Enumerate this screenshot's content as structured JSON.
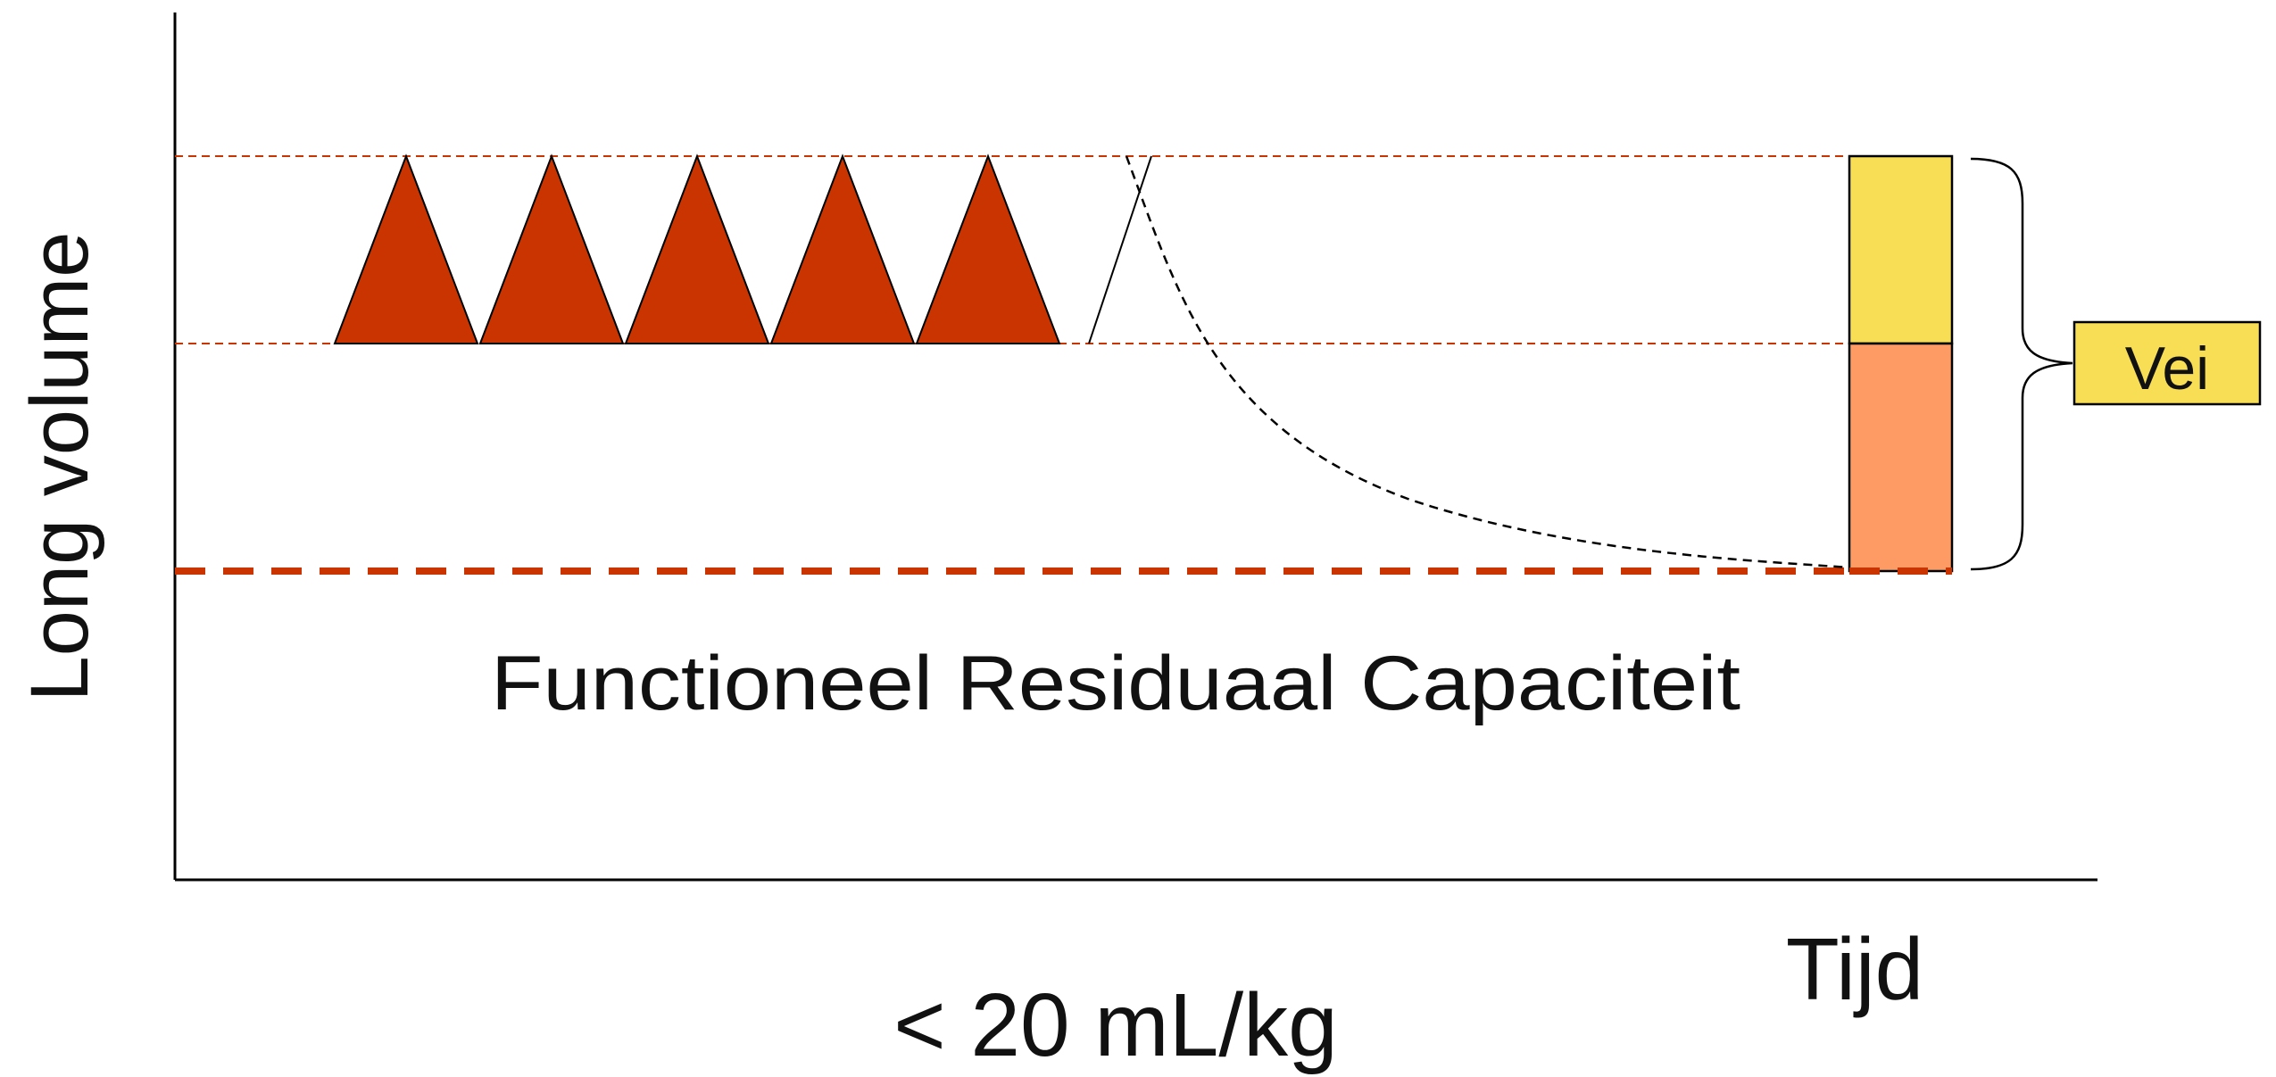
{
  "labels": {
    "y_axis": "Long volume",
    "x_axis": "Tijd",
    "frc": "Functioneel Residuaal Capaciteit",
    "rate": "< 20 mL/kg",
    "vei_box": "Vei"
  },
  "breaths": {
    "filled_count": 5,
    "outline_count": 1
  },
  "colors": {
    "breath_fill": "#C93400",
    "reference_line": "#C93400",
    "bar_top": "#F8DE55",
    "bar_bottom": "#FE9A64",
    "vei_box_fill": "#F8DE55",
    "curve": "#000000"
  }
}
